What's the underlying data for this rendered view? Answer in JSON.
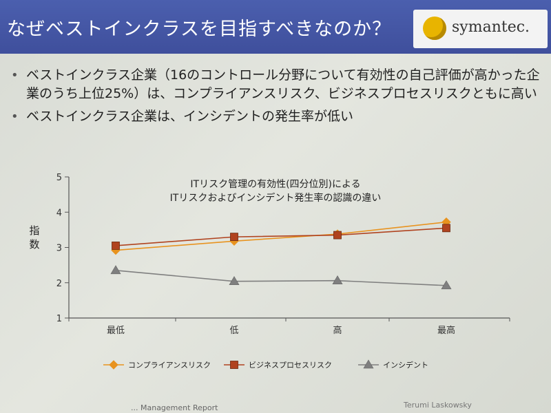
{
  "slide": {
    "title": "なぜベストインクラスを目指すべきなのか？",
    "logo_text": "symantec.",
    "bullets": [
      "ベストインクラス企業（16のコントロール分野について有効性の自己評価が高かった企業のうち上位25%）は、コンプライアンスリスク、ビジネスプロセスリスクともに高い",
      "ベストインクラス企業は、インシデントの発生率が低い"
    ],
    "footer_left": "... Management Report",
    "footer_right": "Terumi Laskowsky"
  },
  "chart_data": {
    "type": "line",
    "title_line1": "ITリスク管理の有効性(四分位別)による",
    "title_line2": "ITリスクおよびインシデント発生率の認識の違い",
    "ylabel": "指数",
    "categories": [
      "最低",
      "低",
      "高",
      "最高"
    ],
    "ylim": [
      1,
      5
    ],
    "yticks": [
      1,
      2,
      3,
      4,
      5
    ],
    "grid": false,
    "legend_position": "bottom",
    "series": [
      {
        "name": "コンプライアンスリスク",
        "marker": "diamond",
        "color": "#e8931f",
        "values": [
          2.92,
          3.18,
          3.38,
          3.72
        ]
      },
      {
        "name": "ビジネスプロセスリスク",
        "marker": "square",
        "color": "#b0431f",
        "values": [
          3.05,
          3.3,
          3.35,
          3.55
        ]
      },
      {
        "name": "インシデント",
        "marker": "triangle",
        "color": "#7f7f7f",
        "values": [
          2.35,
          2.04,
          2.06,
          1.92
        ]
      }
    ]
  }
}
